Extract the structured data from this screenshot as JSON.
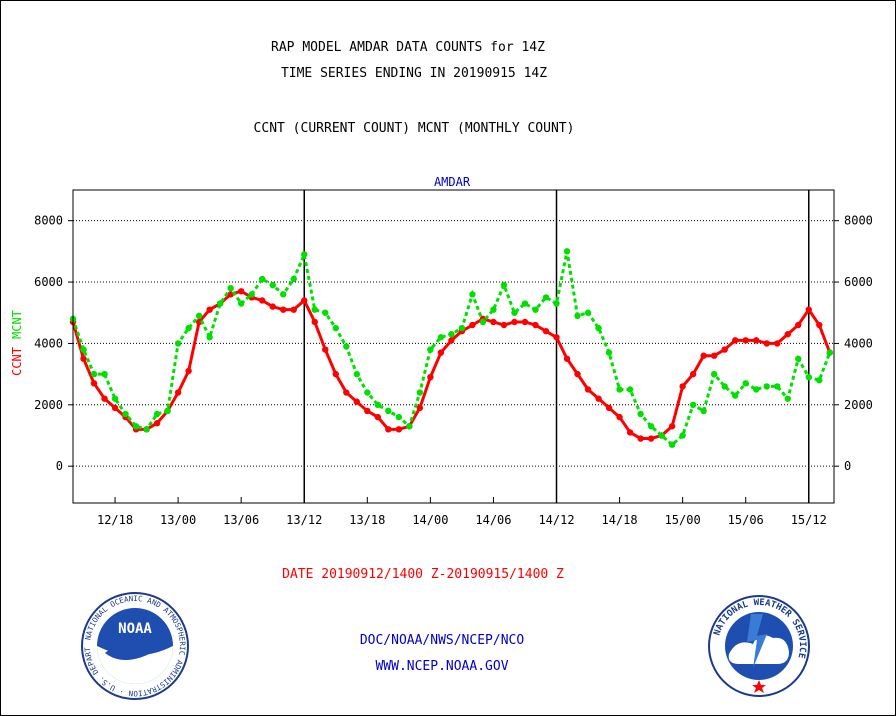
{
  "header": {
    "title_line1": "RAP MODEL AMDAR DATA COUNTS for 14Z",
    "title_line2": "TIME SERIES ENDING IN 20190915 14Z",
    "subtitle": "CCNT (CURRENT COUNT) MCNT (MONTHLY COUNT)"
  },
  "footer": {
    "date_range": "DATE 20190912/1400 Z-20190915/1400 Z",
    "org": "DOC/NOAA/NWS/NCEP/NCO",
    "url": "WWW.NCEP.NOAA.GOV"
  },
  "logos": {
    "left_text": "NOAA",
    "left_ring": "NATIONAL OCEANIC AND ATMOSPHERIC ADMINISTRATION · U.S. DEPARTMENT OF COMMERCE ·",
    "right_ring": "NATIONAL WEATHER SERVICE"
  },
  "colors": {
    "ccnt": "#ff0000",
    "mcnt": "#00e000",
    "title_blue": "#0000cc",
    "footer_red": "#ff0000"
  },
  "chart_data": {
    "type": "line",
    "plot_title": "AMDAR",
    "ylabel_left_parts": [
      {
        "text": "CCNT",
        "color": "#ff0000"
      },
      {
        "text": "MCNT",
        "color": "#00e000"
      }
    ],
    "ylim": [
      -1200,
      9000
    ],
    "y_ticks": [
      0,
      2000,
      4000,
      6000,
      8000
    ],
    "x_tick_labels": [
      "12/18",
      "13/00",
      "13/06",
      "13/12",
      "13/18",
      "14/00",
      "14/06",
      "14/12",
      "14/18",
      "15/00",
      "15/06",
      "15/12"
    ],
    "x_tick_hours": [
      4,
      10,
      16,
      22,
      28,
      34,
      40,
      46,
      52,
      58,
      64,
      70
    ],
    "x_range_hours": [
      0,
      72.4
    ],
    "day_boundaries_hours": [
      22,
      46,
      70
    ],
    "grid": "horizontal-dotted",
    "series": [
      {
        "name": "CCNT",
        "color": "#ff0000",
        "style": "solid",
        "x_hours": [
          0,
          1,
          2,
          3,
          4,
          5,
          6,
          7,
          8,
          9,
          10,
          11,
          12,
          13,
          14,
          15,
          16,
          17,
          18,
          19,
          20,
          21,
          22,
          23,
          24,
          25,
          26,
          27,
          28,
          29,
          30,
          31,
          32,
          33,
          34,
          35,
          36,
          37,
          38,
          39,
          40,
          41,
          42,
          43,
          44,
          45,
          46,
          47,
          48,
          49,
          50,
          51,
          52,
          53,
          54,
          55,
          56,
          57,
          58,
          59,
          60,
          61,
          62,
          63,
          64,
          65,
          66,
          67,
          68,
          69,
          70,
          71,
          72
        ],
        "values": [
          4700,
          3500,
          2700,
          2200,
          1900,
          1600,
          1200,
          1200,
          1400,
          1800,
          2400,
          3100,
          4700,
          5100,
          5300,
          5600,
          5700,
          5500,
          5400,
          5200,
          5100,
          5100,
          5400,
          4700,
          3800,
          3000,
          2400,
          2100,
          1800,
          1600,
          1200,
          1200,
          1300,
          1900,
          2900,
          3700,
          4100,
          4400,
          4600,
          4800,
          4700,
          4600,
          4700,
          4700,
          4600,
          4400,
          4200,
          3500,
          3000,
          2500,
          2200,
          1900,
          1600,
          1100,
          900,
          900,
          1000,
          1300,
          2600,
          3000,
          3600,
          3600,
          3800,
          4100,
          4100,
          4100,
          4000,
          4000,
          4300,
          4600,
          5100,
          4600,
          3700
        ]
      },
      {
        "name": "MCNT",
        "color": "#00e000",
        "style": "dotted",
        "x_hours": [
          0,
          1,
          2,
          3,
          4,
          5,
          6,
          7,
          8,
          9,
          10,
          11,
          12,
          13,
          14,
          15,
          16,
          17,
          18,
          19,
          20,
          21,
          22,
          23,
          24,
          25,
          26,
          27,
          28,
          29,
          30,
          31,
          32,
          33,
          34,
          35,
          36,
          37,
          38,
          39,
          40,
          41,
          42,
          43,
          44,
          45,
          46,
          47,
          48,
          49,
          50,
          51,
          52,
          53,
          54,
          55,
          56,
          57,
          58,
          59,
          60,
          61,
          62,
          63,
          64,
          65,
          66,
          67,
          68,
          69,
          70,
          71,
          72
        ],
        "values": [
          4800,
          3800,
          3000,
          3000,
          2200,
          1700,
          1300,
          1200,
          1700,
          1800,
          4000,
          4500,
          4900,
          4200,
          5300,
          5800,
          5300,
          5600,
          6100,
          5900,
          5600,
          6100,
          6900,
          5100,
          5000,
          4500,
          3900,
          3000,
          2400,
          2000,
          1800,
          1600,
          1300,
          2400,
          3800,
          4200,
          4300,
          4500,
          5600,
          4700,
          5100,
          5900,
          5000,
          5300,
          5100,
          5500,
          5300,
          7000,
          4900,
          5000,
          4500,
          3700,
          2500,
          2500,
          1700,
          1300,
          1000,
          700,
          1000,
          2000,
          1800,
          3000,
          2600,
          2300,
          2700,
          2500,
          2600,
          2600,
          2200,
          3500,
          2900,
          2800,
          3700
        ]
      }
    ]
  }
}
